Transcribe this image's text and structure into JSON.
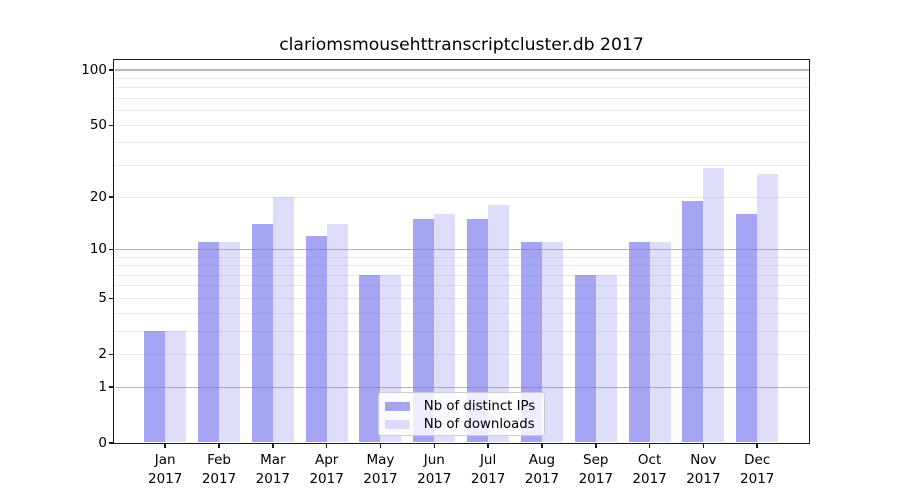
{
  "title": "clariomsmousehttranscriptcluster.db 2017",
  "chart_data": {
    "type": "bar",
    "title": "clariomsmousehttranscriptcluster.db 2017",
    "scale": "log1p",
    "ylim": [
      0,
      100
    ],
    "yticks": [
      100,
      50,
      20,
      10,
      5,
      2,
      1,
      0
    ],
    "major_gridlines": [
      1,
      10,
      100
    ],
    "minor_gridlines": [
      2,
      3,
      4,
      5,
      6,
      7,
      8,
      9,
      20,
      30,
      40,
      50,
      60,
      70,
      80,
      90
    ],
    "grid": "on",
    "xlabel": "",
    "ylabel": "",
    "year": "2017",
    "categories": [
      "Jan",
      "Feb",
      "Mar",
      "Apr",
      "May",
      "Jun",
      "Jul",
      "Aug",
      "Sep",
      "Oct",
      "Nov",
      "Dec"
    ],
    "series": [
      {
        "name": "Nb of distinct IPs",
        "color": "#6969ed",
        "alpha": 0.6,
        "values": [
          3,
          11,
          14,
          12,
          7,
          15,
          15,
          11,
          7,
          11,
          19,
          16
        ]
      },
      {
        "name": "Nb of downloads",
        "color": "#6969ed",
        "alpha": 0.22,
        "values": [
          3,
          11,
          20,
          14,
          7,
          16,
          18,
          11,
          7,
          11,
          29,
          27
        ]
      }
    ],
    "legend": {
      "position": "lower-center-inside",
      "items": [
        "Nb of distinct IPs",
        "Nb of downloads"
      ]
    }
  }
}
